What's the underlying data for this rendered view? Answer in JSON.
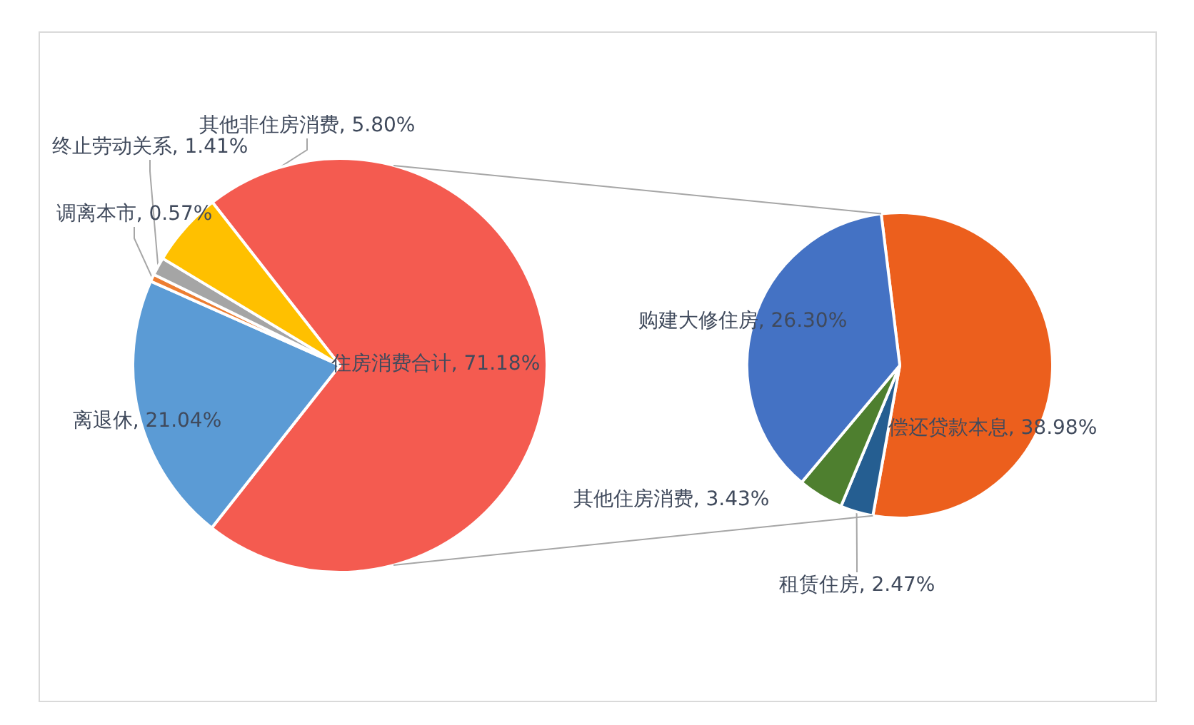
{
  "chart_data": [
    {
      "type": "pie",
      "categories": [
        "住房消费合计",
        "离退休",
        "调离本市",
        "终止劳动关系",
        "其他非住房消费"
      ],
      "values": [
        71.18,
        21.04,
        0.57,
        1.41,
        5.8
      ],
      "colors": [
        "#f45b50",
        "#5b9bd5",
        "#ed7d31",
        "#a5a5a5",
        "#ffc000"
      ],
      "value_labels": [
        "71.18%",
        "21.04%",
        "0.57%",
        "1.41%",
        "5.80%"
      ]
    },
    {
      "type": "pie",
      "categories": [
        "偿还贷款本息",
        "租赁住房",
        "其他住房消费",
        "购建大修住房"
      ],
      "values": [
        38.98,
        2.47,
        3.43,
        26.3
      ],
      "colors": [
        "#ec5f1d",
        "#255e91",
        "#4e7f2f",
        "#4472c4"
      ],
      "value_labels": [
        "38.98%",
        "2.47%",
        "3.43%",
        "26.30%"
      ]
    }
  ]
}
